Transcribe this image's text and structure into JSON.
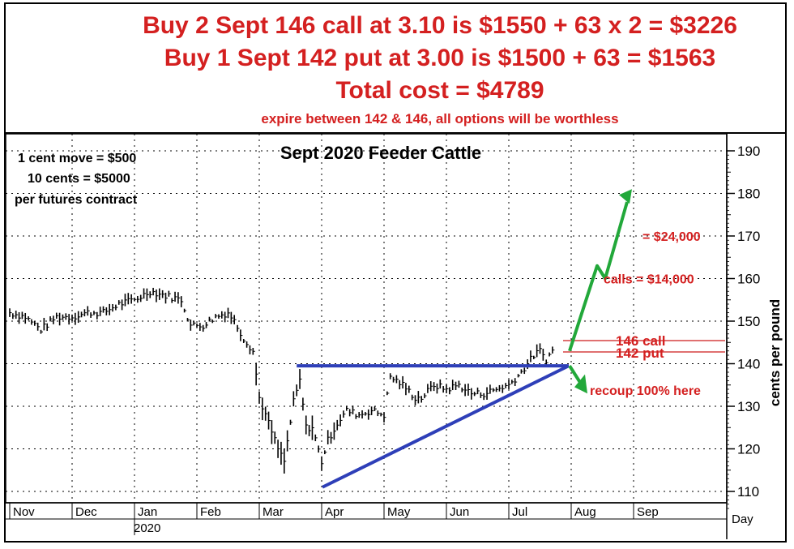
{
  "header": {
    "line1": "Buy 2 Sept 146 call at 3.10 is $1550 + 63 x 2 = $3226",
    "line2": "Buy 1 Sept 142 put at 3.00 is  $1500 + 63 = $1563",
    "line3": "Total cost = $4789",
    "line4": "expire between 142 & 146, all options will be worthless"
  },
  "chart_data": {
    "type": "bar",
    "title": "Sept 2020 Feeder Cattle",
    "ylabel": "cents per pound",
    "xlabel": "Day",
    "ylim": [
      105,
      192
    ],
    "yticks": [
      110,
      120,
      130,
      140,
      150,
      160,
      170,
      180,
      190
    ],
    "ytick_labels": [
      "110",
      "120",
      "130",
      "140",
      "150",
      "160",
      "170",
      "180",
      "190"
    ],
    "months": [
      "Nov",
      "Dec",
      "Jan",
      "Feb",
      "Mar",
      "Apr",
      "May",
      "Jun",
      "Jul",
      "Aug",
      "Sep"
    ],
    "year_label": "2020",
    "notes": [
      "1 cent move = $500",
      "10 cents = $5000",
      "per futures contract"
    ],
    "annotations": {
      "profit_high": "= $24,000",
      "profit_mid": "calls = $14,000",
      "call_label": "146 call",
      "put_label": "142 put",
      "recoup": "recoup 100% here"
    },
    "call_strike": 146,
    "put_strike": 142,
    "resistance": 139.5,
    "price_keypoints": [
      [
        0,
        152
      ],
      [
        0.25,
        151
      ],
      [
        0.5,
        148
      ],
      [
        0.75,
        151
      ],
      [
        1.0,
        151
      ],
      [
        1.25,
        152
      ],
      [
        1.5,
        152
      ],
      [
        1.75,
        154
      ],
      [
        2.0,
        155
      ],
      [
        2.25,
        157
      ],
      [
        2.5,
        156
      ],
      [
        2.75,
        155
      ],
      [
        2.9,
        149
      ],
      [
        3.1,
        149
      ],
      [
        3.3,
        151
      ],
      [
        3.5,
        152
      ],
      [
        3.6,
        150
      ],
      [
        3.75,
        146
      ],
      [
        3.9,
        143
      ],
      [
        4.0,
        132
      ],
      [
        4.15,
        126
      ],
      [
        4.3,
        120
      ],
      [
        4.4,
        117
      ],
      [
        4.55,
        131
      ],
      [
        4.65,
        136
      ],
      [
        4.75,
        125
      ],
      [
        4.85,
        125
      ],
      [
        5.0,
        117
      ],
      [
        5.1,
        122
      ],
      [
        5.25,
        126
      ],
      [
        5.4,
        129
      ],
      [
        5.6,
        128
      ],
      [
        5.8,
        129
      ],
      [
        6.0,
        128
      ],
      [
        6.1,
        137
      ],
      [
        6.3,
        135
      ],
      [
        6.5,
        132
      ],
      [
        6.6,
        132
      ],
      [
        6.8,
        135
      ],
      [
        7.0,
        134
      ],
      [
        7.2,
        135
      ],
      [
        7.4,
        133
      ],
      [
        7.6,
        133
      ],
      [
        7.8,
        134
      ],
      [
        8.0,
        135
      ],
      [
        8.2,
        138
      ],
      [
        8.4,
        142
      ],
      [
        8.5,
        143
      ],
      [
        8.6,
        141
      ],
      [
        8.7,
        143
      ],
      [
        8.72,
        144
      ]
    ]
  },
  "colors": {
    "accent_red": "#d42020",
    "trend_blue": "#2e3fb8",
    "arrow_green": "#22a83a",
    "grid": "#000000"
  }
}
